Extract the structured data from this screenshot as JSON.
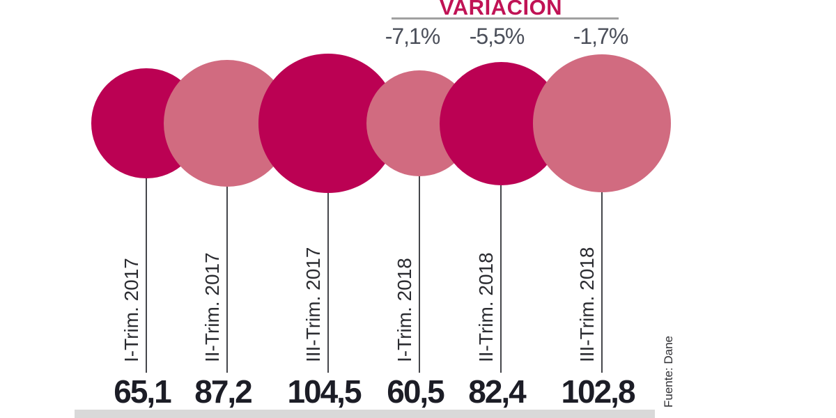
{
  "chart_data": {
    "type": "bubble",
    "title": "VARIACIÓN",
    "categories": [
      "I-Trim. 2017",
      "II-Trim. 2017",
      "III-Trim. 2017",
      "I-Trim. 2018",
      "II-Trim. 2018",
      "III-Trim. 2018"
    ],
    "values": [
      65.1,
      87.2,
      104.5,
      60.5,
      82.4,
      102.8
    ],
    "value_labels": [
      "65,1",
      "87,2",
      "104,5",
      "60,5",
      "82,4",
      "102,8"
    ],
    "series_colors": [
      "dark",
      "light",
      "dark",
      "light",
      "dark",
      "light"
    ],
    "variation": {
      "title": "VARIACIÓN",
      "labels": [
        "-7,1%",
        "-5,5%",
        "-1,7%"
      ],
      "applies_to": [
        "I-Trim. 2018",
        "II-Trim. 2018",
        "III-Trim. 2018"
      ]
    },
    "source": "Fuente: Dane",
    "palette": {
      "bubble_dark": "#bb0153",
      "bubble_light": "#d16b80",
      "variation_title": "#c01355",
      "variation_pct": "#4b4f5a",
      "value_text": "#1c1d26",
      "category_text": "#2b2c31",
      "rule": "#a0a0a0",
      "baseline": "#d9d9d9",
      "stem": "#45464b",
      "source_text": "#2f2f33"
    }
  }
}
